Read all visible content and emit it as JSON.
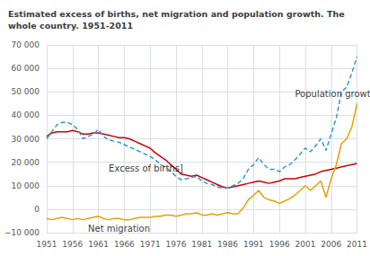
{
  "chart_data": {
    "type": "line",
    "title": "Estimated excess of births, net migration and population growth. The\nwhole country. 1951-2011",
    "x": [
      1951,
      1952,
      1953,
      1954,
      1955,
      1956,
      1957,
      1958,
      1959,
      1960,
      1961,
      1962,
      1963,
      1964,
      1965,
      1966,
      1967,
      1968,
      1969,
      1970,
      1971,
      1972,
      1973,
      1974,
      1975,
      1976,
      1977,
      1978,
      1979,
      1980,
      1981,
      1982,
      1983,
      1984,
      1985,
      1986,
      1987,
      1988,
      1989,
      1990,
      1991,
      1992,
      1993,
      1994,
      1995,
      1996,
      1997,
      1998,
      1999,
      2000,
      2001,
      2002,
      2003,
      2004,
      2005,
      2006,
      2007,
      2008,
      2009,
      2010,
      2011
    ],
    "series": [
      {
        "name": "Excess of births]",
        "color": "#cc0000",
        "line_style": "solid",
        "values": [
          31000,
          32500,
          33000,
          33000,
          33000,
          33500,
          33000,
          32000,
          32000,
          32500,
          32500,
          32000,
          31500,
          31000,
          30500,
          30500,
          30000,
          29000,
          28000,
          27000,
          26000,
          24000,
          22500,
          21000,
          19000,
          17000,
          15000,
          14500,
          14000,
          14500,
          13500,
          12500,
          11500,
          10500,
          9500,
          9000,
          9500,
          10000,
          10500,
          11000,
          11500,
          12000,
          11500,
          11000,
          11500,
          12000,
          13000,
          13000,
          13000,
          13500,
          14000,
          14500,
          15000,
          16000,
          16500,
          17000,
          17500,
          18000,
          18500,
          19000,
          19500
        ]
      },
      {
        "name": "Net migration",
        "color": "#e8a000",
        "line_style": "solid",
        "values": [
          -4000,
          -4500,
          -4000,
          -3500,
          -4000,
          -4500,
          -4000,
          -4500,
          -4000,
          -3500,
          -3000,
          -4000,
          -4500,
          -4000,
          -4000,
          -4500,
          -4500,
          -4000,
          -3500,
          -3500,
          -3500,
          -3000,
          -3000,
          -2500,
          -2500,
          -3000,
          -2500,
          -2000,
          -2000,
          -1500,
          -2500,
          -2500,
          -2000,
          -2500,
          -2000,
          -1500,
          -2000,
          -2000,
          500,
          4000,
          6000,
          8000,
          5000,
          4000,
          3500,
          2500,
          3500,
          4500,
          6000,
          8000,
          10000,
          8000,
          10000,
          12000,
          5000,
          13000,
          19000,
          28000,
          30000,
          35000,
          45000
        ]
      },
      {
        "name": "Population growth",
        "color": "#3399cc",
        "line_style": "dashed",
        "values": [
          30000,
          33000,
          36000,
          37000,
          37000,
          36000,
          34000,
          30000,
          31000,
          32000,
          34000,
          31000,
          29500,
          29000,
          28500,
          27500,
          26500,
          25500,
          24500,
          23500,
          22500,
          21000,
          19000,
          18000,
          16000,
          14000,
          12500,
          13000,
          13500,
          14000,
          12000,
          11000,
          10500,
          9500,
          9000,
          9000,
          10000,
          11000,
          13000,
          17000,
          19000,
          22000,
          19000,
          17000,
          17000,
          16000,
          18000,
          19000,
          21000,
          23500,
          26000,
          24500,
          27000,
          30000,
          25000,
          32000,
          39000,
          50000,
          52000,
          58000,
          65000
        ]
      }
    ],
    "annotations": [
      {
        "text": "Population growth",
        "x": 1999,
        "y": 49000
      },
      {
        "text": "Excess of births]",
        "x": 1963,
        "y": 17500
      },
      {
        "text": "Net migration",
        "x": 1959,
        "y": -8200
      }
    ],
    "xlim": [
      1951,
      2011
    ],
    "xticks": [
      1951,
      1956,
      1961,
      1966,
      1971,
      1976,
      1981,
      1986,
      1991,
      1996,
      2001,
      2006,
      2011
    ],
    "ylim": [
      -10000,
      70000
    ],
    "yticks": [
      {
        "value": -10000,
        "label": "−10 000"
      },
      0,
      {
        "value": 10000,
        "label": "10 000"
      },
      {
        "value": 20000,
        "label": "20 000"
      },
      {
        "value": 30000,
        "label": "30 000"
      },
      {
        "value": 40000,
        "label": "40 000"
      },
      {
        "value": 50000,
        "label": "50 000"
      },
      {
        "value": 60000,
        "label": "60 000"
      },
      {
        "value": 70000,
        "label": "70 000"
      }
    ],
    "grid": true
  }
}
